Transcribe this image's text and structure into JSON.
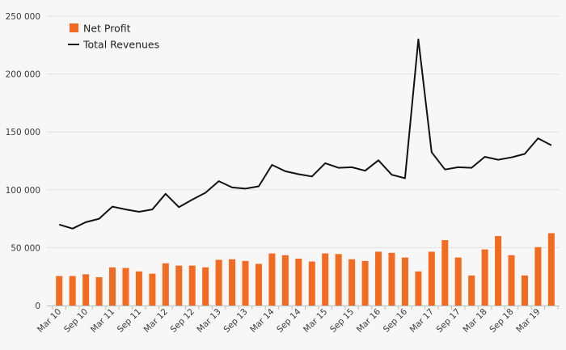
{
  "chart_data": {
    "type": "bar",
    "categories": [
      "Mar 10",
      "Jun 10",
      "Sep 10",
      "Dec 10",
      "Mar 11",
      "Jun 11",
      "Sep 11",
      "Dec 11",
      "Mar 12",
      "Jun 12",
      "Sep 12",
      "Dec 12",
      "Mar 13",
      "Jun 13",
      "Sep 13",
      "Dec 13",
      "Mar 14",
      "Jun 14",
      "Sep 14",
      "Dec 14",
      "Mar 15",
      "Jun 15",
      "Sep 15",
      "Dec 15",
      "Mar 16",
      "Jun 16",
      "Sep 16",
      "Dec 16",
      "Mar 17",
      "Jun 17",
      "Sep 17",
      "Dec 17",
      "Mar 18",
      "Jun 18",
      "Sep 18",
      "Dec 18",
      "Mar 19",
      "Jun 19"
    ],
    "x_tick_labels": [
      "Mar 10",
      "Sep 10",
      "Mar 11",
      "Sep 11",
      "Mar 12",
      "Sep 12",
      "Mar 13",
      "Sep 13",
      "Mar 14",
      "Sep 14",
      "Mar 15",
      "Sep 15",
      "Mar 16",
      "Sep 16",
      "Mar 17",
      "Sep 17",
      "Mar 18",
      "Sep 18",
      "Mar 19"
    ],
    "y_ticks": [
      0,
      50000,
      100000,
      150000,
      200000,
      250000
    ],
    "y_tick_labels": [
      "0",
      "50 000",
      "100 000",
      "150 000",
      "200 000",
      "250 000"
    ],
    "ylim": [
      0,
      250000
    ],
    "grid": true,
    "legend_position": "top-left",
    "series": [
      {
        "name": "Net Profit",
        "type": "bar",
        "color": "#f26b21",
        "values": [
          25500,
          25500,
          27000,
          24500,
          33000,
          32500,
          29500,
          27500,
          36500,
          34500,
          34500,
          33000,
          39500,
          40000,
          38500,
          36000,
          45000,
          43500,
          40500,
          38000,
          45000,
          44500,
          40000,
          38500,
          46500,
          45500,
          41500,
          29500,
          46500,
          56500,
          41500,
          26000,
          48500,
          60000,
          43500,
          26000,
          50500,
          62500
        ]
      },
      {
        "name": "Total Revenues",
        "type": "line",
        "color": "#111111",
        "values": [
          70000,
          66500,
          72000,
          75000,
          85500,
          83000,
          81000,
          83000,
          96500,
          85000,
          91500,
          97500,
          107500,
          102000,
          101000,
          103000,
          121500,
          116000,
          113500,
          111500,
          123000,
          119000,
          119500,
          116500,
          125500,
          113000,
          110000,
          230000,
          132500,
          117500,
          119500,
          119000,
          128500,
          126000,
          128000,
          131000,
          144500,
          138500
        ]
      }
    ]
  }
}
